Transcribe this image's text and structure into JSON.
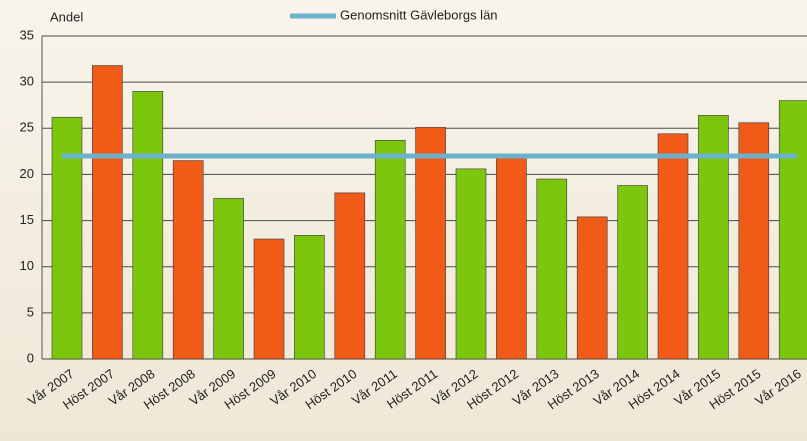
{
  "chart_data": {
    "type": "bar",
    "y_label": "Andel",
    "categories": [
      "Vår 2007",
      "Höst 2007",
      "Vår 2008",
      "Höst 2008",
      "Vår 2009",
      "Höst 2009",
      "Vår 2010",
      "Höst 2010",
      "Vår 2011",
      "Höst 2011",
      "Vår 2012",
      "Höst 2012",
      "Vår 2013",
      "Höst 2013",
      "Vår 2014",
      "Höst 2014",
      "Vår 2015",
      "Höst 2015",
      "Vår 2016"
    ],
    "values": [
      26.2,
      31.8,
      29,
      21.5,
      17.4,
      13,
      13.4,
      18,
      23.7,
      25.1,
      20.6,
      21.9,
      19.5,
      15.4,
      18.8,
      24.4,
      26.4,
      25.6,
      28
    ],
    "bar_colors": [
      "#7cc60e",
      "#f25a17",
      "#7cc60e",
      "#f25a17",
      "#7cc60e",
      "#f25a17",
      "#7cc60e",
      "#f25a17",
      "#7cc60e",
      "#f25a17",
      "#7cc60e",
      "#f25a17",
      "#7cc60e",
      "#f25a17",
      "#7cc60e",
      "#f25a17",
      "#7cc60e",
      "#f25a17",
      "#7cc60e"
    ],
    "reference_line": {
      "name": "Genomsnitt Gävleborgs län",
      "value": 22,
      "color": "#6cb2cc"
    },
    "ylim": [
      0,
      35
    ],
    "yticks": [
      0,
      5,
      10,
      15,
      20,
      25,
      30,
      35
    ],
    "grid": true
  }
}
